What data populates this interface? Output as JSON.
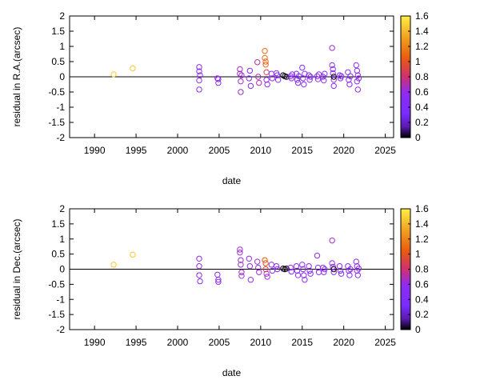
{
  "chart_data": [
    {
      "type": "scatter",
      "xlabel": "date",
      "ylabel": "residual in R.A.(arcsec)",
      "xlim": [
        1987,
        2026
      ],
      "ylim": [
        -2,
        2
      ],
      "xticks": [
        "1990",
        "1995",
        "2000",
        "2005",
        "2010",
        "2015",
        "2020",
        "2025"
      ],
      "yticks": [
        "-2",
        "-1.5",
        "-1",
        "-0.5",
        "0",
        "0.5",
        "1",
        "1.5",
        "2"
      ],
      "zero_line": true,
      "colorbar": {
        "range": [
          0,
          1.6
        ],
        "ticks": [
          "0",
          "0.2",
          "0.4",
          "0.6",
          "0.8",
          "1",
          "1.2",
          "1.4",
          "1.6"
        ]
      },
      "marker": "open-circle",
      "points": [
        [
          1992.3,
          0.08,
          1.45
        ],
        [
          1994.6,
          0.28,
          1.45
        ],
        [
          2002.6,
          0.32,
          0.6
        ],
        [
          2002.6,
          0.18,
          0.6
        ],
        [
          2002.6,
          -0.12,
          0.6
        ],
        [
          2002.6,
          -0.42,
          0.6
        ],
        [
          2002.7,
          0.05,
          0.6
        ],
        [
          2004.8,
          -0.05,
          0.6
        ],
        [
          2004.9,
          -0.2,
          0.6
        ],
        [
          2004.9,
          -0.08,
          0.6
        ],
        [
          2007.5,
          0.25,
          0.65
        ],
        [
          2007.5,
          0.1,
          0.65
        ],
        [
          2007.6,
          -0.15,
          0.65
        ],
        [
          2007.6,
          -0.5,
          0.65
        ],
        [
          2007.7,
          0.05,
          0.65
        ],
        [
          2008.6,
          -0.05,
          0.6
        ],
        [
          2008.7,
          0.2,
          0.6
        ],
        [
          2008.8,
          -0.3,
          0.6
        ],
        [
          2009.6,
          0.48,
          0.7
        ],
        [
          2009.7,
          0.0,
          0.7
        ],
        [
          2009.8,
          -0.2,
          0.7
        ],
        [
          2010.5,
          0.85,
          1.1
        ],
        [
          2010.5,
          0.62,
          1.1
        ],
        [
          2010.6,
          0.5,
          1.1
        ],
        [
          2010.6,
          0.4,
          1.05
        ],
        [
          2010.7,
          0.15,
          0.9
        ],
        [
          2010.7,
          -0.1,
          0.6
        ],
        [
          2010.8,
          -0.25,
          0.6
        ],
        [
          2011.3,
          0.1,
          0.6
        ],
        [
          2011.4,
          -0.05,
          0.6
        ],
        [
          2011.9,
          0.12,
          0.55
        ],
        [
          2012.0,
          0.05,
          0.55
        ],
        [
          2012.1,
          -0.1,
          0.55
        ],
        [
          2012.7,
          0.05,
          0.02
        ],
        [
          2012.9,
          0.02,
          0.02
        ],
        [
          2013.1,
          0.0,
          0.02
        ],
        [
          2013.6,
          0.02,
          0.55
        ],
        [
          2013.7,
          -0.05,
          0.55
        ],
        [
          2013.8,
          0.08,
          0.55
        ],
        [
          2014.3,
          0.1,
          0.5
        ],
        [
          2014.4,
          -0.1,
          0.5
        ],
        [
          2014.5,
          -0.2,
          0.5
        ],
        [
          2014.6,
          0.02,
          0.5
        ],
        [
          2015.0,
          0.3,
          0.55
        ],
        [
          2015.1,
          -0.05,
          0.55
        ],
        [
          2015.2,
          -0.25,
          0.55
        ],
        [
          2015.3,
          0.1,
          0.55
        ],
        [
          2015.8,
          0.05,
          0.5
        ],
        [
          2015.9,
          -0.1,
          0.5
        ],
        [
          2016.0,
          0.0,
          0.5
        ],
        [
          2016.8,
          0.02,
          0.55
        ],
        [
          2016.9,
          -0.08,
          0.55
        ],
        [
          2017.0,
          0.08,
          0.55
        ],
        [
          2017.5,
          0.0,
          0.5
        ],
        [
          2017.6,
          -0.12,
          0.5
        ],
        [
          2017.7,
          0.1,
          0.5
        ],
        [
          2018.6,
          0.95,
          0.65
        ],
        [
          2018.6,
          0.38,
          0.6
        ],
        [
          2018.7,
          0.25,
          0.6
        ],
        [
          2018.7,
          0.12,
          0.6
        ],
        [
          2018.8,
          -0.1,
          0.6
        ],
        [
          2018.8,
          -0.3,
          0.6
        ],
        [
          2018.8,
          0.0,
          0.02
        ],
        [
          2019.5,
          0.05,
          0.5
        ],
        [
          2019.6,
          -0.05,
          0.5
        ],
        [
          2019.7,
          0.02,
          0.3
        ],
        [
          2020.5,
          0.15,
          0.55
        ],
        [
          2020.6,
          -0.1,
          0.55
        ],
        [
          2020.7,
          -0.25,
          0.55
        ],
        [
          2020.8,
          0.02,
          0.55
        ],
        [
          2021.5,
          0.38,
          0.6
        ],
        [
          2021.6,
          0.2,
          0.6
        ],
        [
          2021.6,
          -0.15,
          0.6
        ],
        [
          2021.7,
          -0.42,
          0.6
        ],
        [
          2021.7,
          0.05,
          0.6
        ],
        [
          2021.8,
          -0.05,
          0.6
        ]
      ]
    },
    {
      "type": "scatter",
      "xlabel": "date",
      "ylabel": "residual in Dec.(arcsec)",
      "xlim": [
        1987,
        2026
      ],
      "ylim": [
        -2,
        2
      ],
      "xticks": [
        "1990",
        "1995",
        "2000",
        "2005",
        "2010",
        "2015",
        "2020",
        "2025"
      ],
      "yticks": [
        "-2",
        "-1.5",
        "-1",
        "-0.5",
        "0",
        "0.5",
        "1",
        "1.5",
        "2"
      ],
      "zero_line": true,
      "colorbar": {
        "range": [
          0,
          1.6
        ],
        "ticks": [
          "0",
          "0.2",
          "0.4",
          "0.6",
          "0.8",
          "1",
          "1.2",
          "1.4",
          "1.6"
        ]
      },
      "marker": "open-circle",
      "points": [
        [
          1992.3,
          0.15,
          1.45
        ],
        [
          1994.6,
          0.48,
          1.45
        ],
        [
          2002.6,
          0.35,
          0.6
        ],
        [
          2002.6,
          0.1,
          0.6
        ],
        [
          2002.6,
          -0.2,
          0.6
        ],
        [
          2002.7,
          -0.4,
          0.6
        ],
        [
          2004.8,
          -0.18,
          0.6
        ],
        [
          2004.9,
          -0.35,
          0.6
        ],
        [
          2004.9,
          -0.42,
          0.6
        ],
        [
          2007.5,
          0.65,
          0.65
        ],
        [
          2007.5,
          0.55,
          0.65
        ],
        [
          2007.6,
          0.3,
          0.65
        ],
        [
          2007.6,
          0.15,
          0.65
        ],
        [
          2007.7,
          -0.1,
          0.65
        ],
        [
          2007.7,
          -0.22,
          0.65
        ],
        [
          2008.6,
          0.35,
          0.6
        ],
        [
          2008.7,
          0.1,
          0.6
        ],
        [
          2008.8,
          -0.35,
          0.6
        ],
        [
          2009.6,
          0.25,
          0.65
        ],
        [
          2009.7,
          0.05,
          0.65
        ],
        [
          2009.8,
          -0.1,
          0.65
        ],
        [
          2010.5,
          0.3,
          1.05
        ],
        [
          2010.6,
          0.2,
          1.0
        ],
        [
          2010.6,
          0.0,
          0.9
        ],
        [
          2010.7,
          -0.15,
          0.7
        ],
        [
          2010.8,
          -0.25,
          0.6
        ],
        [
          2011.3,
          0.15,
          0.6
        ],
        [
          2011.4,
          -0.05,
          0.6
        ],
        [
          2011.9,
          0.1,
          0.55
        ],
        [
          2012.0,
          0.0,
          0.55
        ],
        [
          2012.7,
          0.02,
          0.02
        ],
        [
          2012.9,
          0.0,
          0.02
        ],
        [
          2013.1,
          0.02,
          0.02
        ],
        [
          2013.6,
          0.05,
          0.55
        ],
        [
          2013.7,
          -0.08,
          0.55
        ],
        [
          2014.3,
          0.1,
          0.5
        ],
        [
          2014.4,
          -0.05,
          0.5
        ],
        [
          2014.5,
          -0.2,
          0.5
        ],
        [
          2015.0,
          0.15,
          0.55
        ],
        [
          2015.1,
          0.0,
          0.55
        ],
        [
          2015.2,
          -0.2,
          0.55
        ],
        [
          2015.3,
          -0.35,
          0.55
        ],
        [
          2015.8,
          0.1,
          0.5
        ],
        [
          2015.9,
          -0.05,
          0.5
        ],
        [
          2016.0,
          -0.15,
          0.5
        ],
        [
          2016.8,
          0.45,
          0.6
        ],
        [
          2016.9,
          0.05,
          0.55
        ],
        [
          2017.0,
          -0.1,
          0.55
        ],
        [
          2017.5,
          0.05,
          0.5
        ],
        [
          2017.6,
          -0.1,
          0.5
        ],
        [
          2017.7,
          0.0,
          0.5
        ],
        [
          2018.6,
          0.95,
          0.65
        ],
        [
          2018.6,
          0.2,
          0.6
        ],
        [
          2018.7,
          0.08,
          0.6
        ],
        [
          2018.8,
          -0.1,
          0.6
        ],
        [
          2018.8,
          0.0,
          0.02
        ],
        [
          2019.5,
          0.1,
          0.5
        ],
        [
          2019.6,
          -0.05,
          0.5
        ],
        [
          2019.7,
          -0.15,
          0.5
        ],
        [
          2020.5,
          0.1,
          0.55
        ],
        [
          2020.6,
          -0.05,
          0.55
        ],
        [
          2020.7,
          -0.2,
          0.55
        ],
        [
          2020.8,
          0.0,
          0.55
        ],
        [
          2021.5,
          0.25,
          0.6
        ],
        [
          2021.6,
          0.1,
          0.6
        ],
        [
          2021.6,
          -0.05,
          0.6
        ],
        [
          2021.7,
          -0.2,
          0.6
        ],
        [
          2021.8,
          0.02,
          0.6
        ]
      ]
    }
  ]
}
